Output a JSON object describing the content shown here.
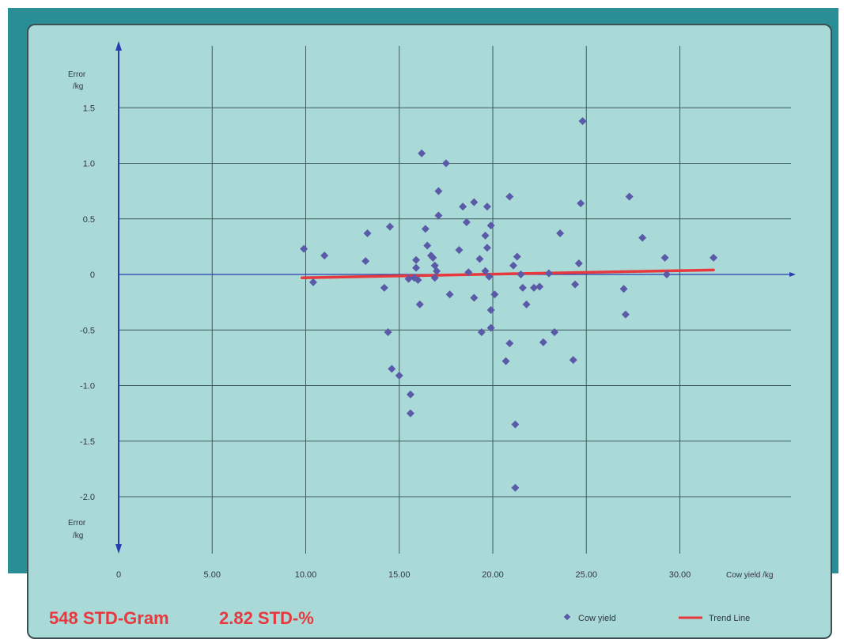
{
  "chart_data": {
    "type": "scatter",
    "x_ticks": [
      "0",
      "5.00",
      "10.00",
      "15.00",
      "20.00",
      "25.00",
      "30.00"
    ],
    "y_ticks": [
      "1.5",
      "1.0",
      "0.5",
      "0",
      "-0.5",
      "-1.0",
      "-1.5",
      "-2.0"
    ],
    "xlabel": "Cow yield /kg",
    "ylabel_top": [
      "Error",
      "/kg"
    ],
    "ylabel_bottom": [
      "Error",
      "/kg"
    ],
    "xlim": [
      0,
      32
    ],
    "ylim": [
      -2.4,
      2.0
    ],
    "grid": true,
    "legend_position": "bottom-right",
    "series": [
      {
        "name": "Cow yield",
        "color": "#5a5aa8",
        "marker": "diamond",
        "points": [
          [
            9.9,
            0.23
          ],
          [
            10.4,
            -0.07
          ],
          [
            11.0,
            0.17
          ],
          [
            13.2,
            0.12
          ],
          [
            13.3,
            0.37
          ],
          [
            14.2,
            -0.12
          ],
          [
            14.4,
            -0.52
          ],
          [
            14.5,
            0.43
          ],
          [
            14.6,
            -0.85
          ],
          [
            15.0,
            -0.91
          ],
          [
            15.5,
            -0.04
          ],
          [
            15.6,
            -1.08
          ],
          [
            15.6,
            -1.25
          ],
          [
            15.8,
            -0.03
          ],
          [
            15.9,
            0.13
          ],
          [
            15.9,
            0.06
          ],
          [
            16.0,
            -0.05
          ],
          [
            16.1,
            -0.27
          ],
          [
            16.2,
            1.09
          ],
          [
            16.4,
            0.41
          ],
          [
            16.5,
            0.26
          ],
          [
            16.7,
            0.17
          ],
          [
            16.8,
            0.15
          ],
          [
            16.9,
            0.08
          ],
          [
            16.9,
            -0.03
          ],
          [
            17.0,
            0.03
          ],
          [
            17.1,
            0.53
          ],
          [
            17.1,
            0.75
          ],
          [
            17.5,
            1.0
          ],
          [
            17.7,
            -0.18
          ],
          [
            18.2,
            0.22
          ],
          [
            18.4,
            0.61
          ],
          [
            18.6,
            0.47
          ],
          [
            18.7,
            0.02
          ],
          [
            19.0,
            0.65
          ],
          [
            19.0,
            -0.21
          ],
          [
            19.3,
            0.14
          ],
          [
            19.4,
            -0.52
          ],
          [
            19.6,
            0.03
          ],
          [
            19.6,
            0.35
          ],
          [
            19.7,
            0.61
          ],
          [
            19.7,
            0.24
          ],
          [
            19.8,
            -0.02
          ],
          [
            19.9,
            -0.32
          ],
          [
            19.9,
            0.44
          ],
          [
            19.9,
            -0.48
          ],
          [
            20.1,
            -0.18
          ],
          [
            20.7,
            -0.78
          ],
          [
            20.9,
            -0.62
          ],
          [
            20.9,
            0.7
          ],
          [
            21.1,
            0.08
          ],
          [
            21.2,
            -1.35
          ],
          [
            21.2,
            -1.92
          ],
          [
            21.3,
            0.16
          ],
          [
            21.5,
            0.0
          ],
          [
            21.6,
            -0.12
          ],
          [
            21.8,
            -0.27
          ],
          [
            22.2,
            -0.12
          ],
          [
            22.5,
            -0.11
          ],
          [
            22.7,
            -0.61
          ],
          [
            23.0,
            0.01
          ],
          [
            23.3,
            -0.52
          ],
          [
            23.6,
            0.37
          ],
          [
            24.3,
            -0.77
          ],
          [
            24.4,
            -0.09
          ],
          [
            24.6,
            0.1
          ],
          [
            24.7,
            0.64
          ],
          [
            24.8,
            1.38
          ],
          [
            27.0,
            -0.13
          ],
          [
            27.1,
            -0.36
          ],
          [
            27.3,
            0.7
          ],
          [
            28.0,
            0.33
          ],
          [
            29.2,
            0.15
          ],
          [
            29.3,
            0.0
          ],
          [
            31.8,
            0.15
          ]
        ]
      }
    ],
    "trend_line": {
      "name": "Trend Line",
      "color": "#e8383d",
      "x": [
        9.8,
        31.8
      ],
      "y": [
        -0.03,
        0.04
      ]
    }
  },
  "stats": {
    "std_gram": "548 STD-Gram",
    "std_pct": "2.82 STD-%"
  }
}
